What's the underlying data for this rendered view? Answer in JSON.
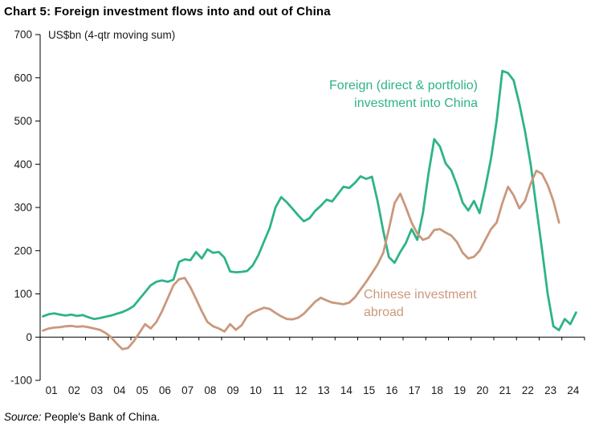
{
  "page": {
    "title": "Chart 5: Foreign investment flows into and out of China",
    "source_prefix": "Source:",
    "source_text": " People's Bank of China."
  },
  "chart_data": {
    "type": "line",
    "title": "Chart 5: Foreign investment flows into and out of China",
    "unit_note": "US$bn (4-qtr moving sum)",
    "xlabel": "",
    "ylabel": "US$bn",
    "ylim": [
      -100,
      700
    ],
    "ytick_step": 100,
    "ytick_labels": [
      "-100",
      "0",
      "100",
      "200",
      "300",
      "400",
      "500",
      "600",
      "700"
    ],
    "x_year_labels": [
      "01",
      "02",
      "03",
      "04",
      "05",
      "06",
      "07",
      "08",
      "09",
      "10",
      "11",
      "12",
      "13",
      "14",
      "15",
      "16",
      "17",
      "18",
      "19",
      "20",
      "21",
      "22",
      "23",
      "24"
    ],
    "quarters_per_year": 4,
    "x_start": "2001Q1",
    "grid": "off",
    "legend_position": "inline-annotations",
    "series": [
      {
        "name": "Foreign (direct & portfolio) investment into China",
        "label_lines": [
          "Foreign (direct & portfolio)",
          "investment into China"
        ],
        "label_align": "right",
        "color": "#2eb38a",
        "values": [
          48,
          53,
          55,
          52,
          50,
          52,
          49,
          51,
          46,
          42,
          44,
          47,
          50,
          54,
          58,
          64,
          72,
          88,
          104,
          120,
          128,
          131,
          128,
          133,
          174,
          180,
          178,
          197,
          182,
          203,
          195,
          197,
          184,
          152,
          150,
          151,
          153,
          166,
          190,
          222,
          253,
          300,
          324,
          312,
          297,
          282,
          268,
          275,
          292,
          304,
          318,
          314,
          331,
          348,
          345,
          357,
          372,
          366,
          371,
          315,
          246,
          185,
          172,
          197,
          218,
          250,
          225,
          287,
          380,
          458,
          441,
          402,
          386,
          352,
          311,
          293,
          315,
          287,
          346,
          413,
          500,
          616,
          611,
          594,
          540,
          477,
          400,
          300,
          203,
          100,
          25,
          16,
          42,
          30,
          57
        ]
      },
      {
        "name": "Chinese investment abroad",
        "label_lines": [
          "Chinese investment",
          "abroad"
        ],
        "label_align": "left",
        "color": "#ca987d",
        "values": [
          15,
          20,
          22,
          23,
          25,
          26,
          24,
          25,
          23,
          20,
          17,
          10,
          0,
          -15,
          -28,
          -25,
          -10,
          10,
          30,
          20,
          35,
          60,
          90,
          120,
          134,
          137,
          115,
          88,
          60,
          35,
          25,
          20,
          13,
          30,
          17,
          27,
          48,
          57,
          63,
          68,
          65,
          56,
          48,
          42,
          41,
          45,
          54,
          68,
          82,
          91,
          85,
          80,
          78,
          76,
          80,
          92,
          110,
          128,
          148,
          168,
          195,
          250,
          310,
          332,
          300,
          265,
          240,
          225,
          230,
          248,
          250,
          242,
          235,
          220,
          195,
          182,
          186,
          200,
          225,
          250,
          265,
          310,
          348,
          328,
          298,
          315,
          355,
          385,
          378,
          352,
          315,
          265
        ]
      }
    ]
  }
}
